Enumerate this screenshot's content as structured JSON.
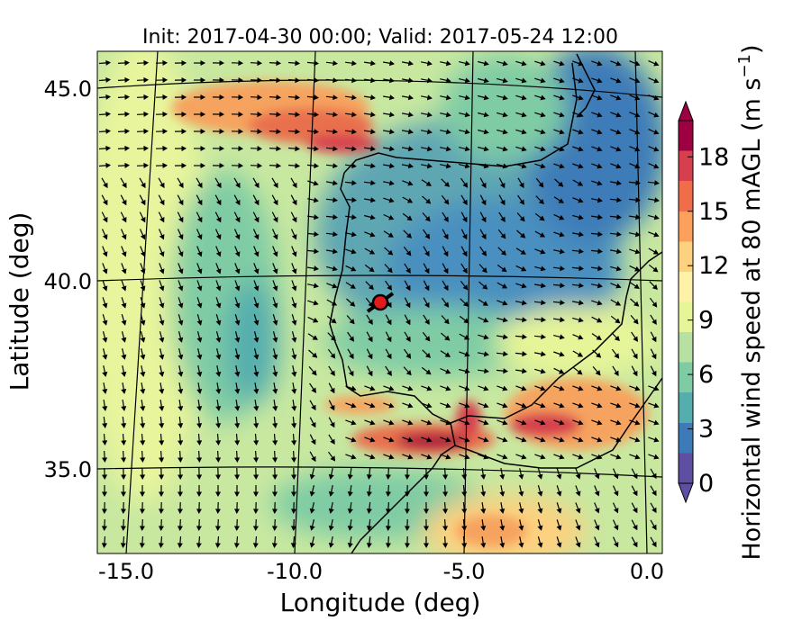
{
  "title": "Init: 2017-04-30 00:00; Valid: 2017-05-24 12:00",
  "xlabel": "Longitude (deg)",
  "ylabel": "Latitude (deg)",
  "colorbar": {
    "label": "Horizontal wind speed at 80 mAGL (m s",
    "label_exp": "−1",
    "label_close": ")",
    "ticks": [
      "0",
      "3",
      "6",
      "9",
      "12",
      "15",
      "18"
    ],
    "range": [
      0,
      20
    ],
    "colormap": [
      "#5e4fa2",
      "#3d7bb8",
      "#54aead",
      "#7fcca4",
      "#b6e1a2",
      "#e6f598",
      "#fdf2a8",
      "#fdd17f",
      "#fca15d",
      "#f06d4a",
      "#d6404e",
      "#9e0142"
    ]
  },
  "x_ticks": [
    {
      "label": "-15.0",
      "value": -15
    },
    {
      "label": "-10.0",
      "value": -10
    },
    {
      "label": "-5.0",
      "value": -5
    },
    {
      "label": "0.0",
      "value": 0
    }
  ],
  "y_ticks": [
    {
      "label": "45.0",
      "value": 45
    },
    {
      "label": "40.0",
      "value": 40
    },
    {
      "label": "35.0",
      "value": 35
    }
  ],
  "marker": {
    "lon": -7.7,
    "lat": 39.3,
    "color": "#e31a1c"
  },
  "legend": "none"
}
